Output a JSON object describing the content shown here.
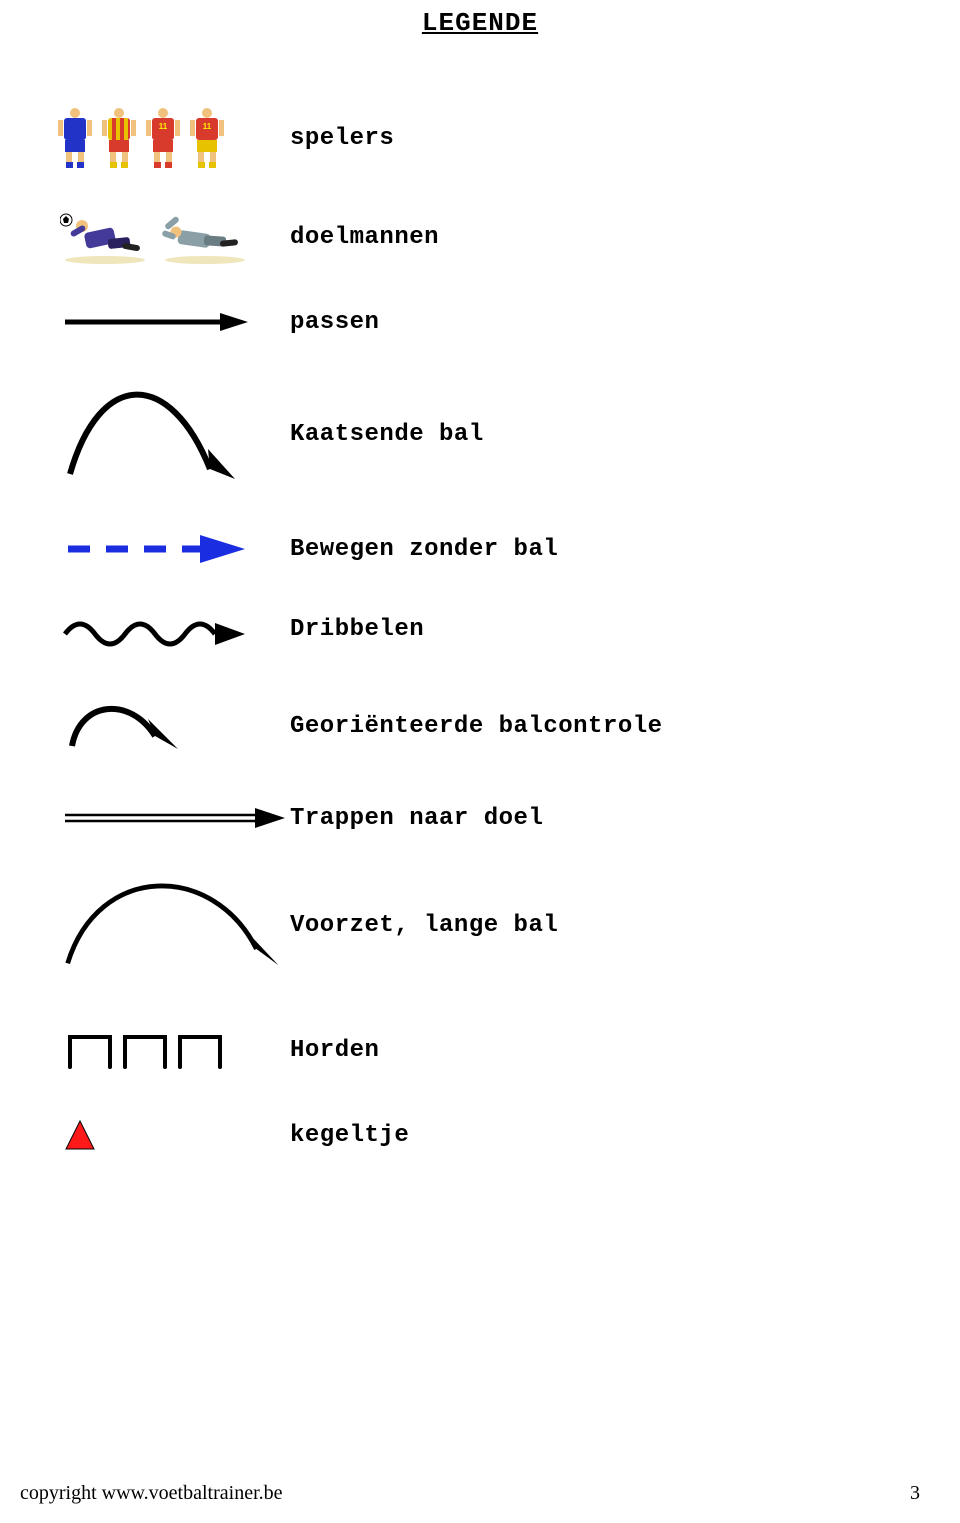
{
  "title": "LEGENDE",
  "items": [
    {
      "label": "spelers"
    },
    {
      "label": "doelmannen"
    },
    {
      "label": "passen"
    },
    {
      "label": "Kaatsende bal"
    },
    {
      "label": "Bewegen zonder bal"
    },
    {
      "label": "Dribbelen"
    },
    {
      "label": "Georiënteerde balcontrole"
    },
    {
      "label": "Trappen naar doel"
    },
    {
      "label": "Voorzet, lange bal"
    },
    {
      "label": "Horden"
    },
    {
      "label": "kegeltje"
    }
  ],
  "players": [
    {
      "torso": "#2234c8",
      "stripe": null,
      "shorts": "#2234c8",
      "socks": "#2234c8",
      "num": ""
    },
    {
      "torso": "#e6c200",
      "stripe": "#d83a2b",
      "shorts": "#d83a2b",
      "socks": "#e6c200",
      "num": ""
    },
    {
      "torso": "#d83a2b",
      "stripe": null,
      "shorts": "#d83a2b",
      "socks": "#d83a2b",
      "num": "11"
    },
    {
      "torso": "#d83a2b",
      "stripe": null,
      "shorts": "#e6c200",
      "socks": "#e6c200",
      "num": "11"
    }
  ],
  "keepers": [
    {
      "jersey": "#443a99",
      "shorts": "#2a2060",
      "ball": "#ffffff"
    },
    {
      "jersey": "#8aa0a6",
      "shorts": "#6a7d82"
    }
  ],
  "colors": {
    "black": "#000000",
    "blue": "#1a2de0",
    "coneFill": "#ff1a1a",
    "coneStroke": "#000000",
    "skin": "#f1c27d"
  },
  "label_fontsize": 24,
  "title_fontsize": 26,
  "footer": {
    "copyright": "copyright www.voetbaltrainer.be",
    "page": "3"
  },
  "footer_fontsize": 20
}
